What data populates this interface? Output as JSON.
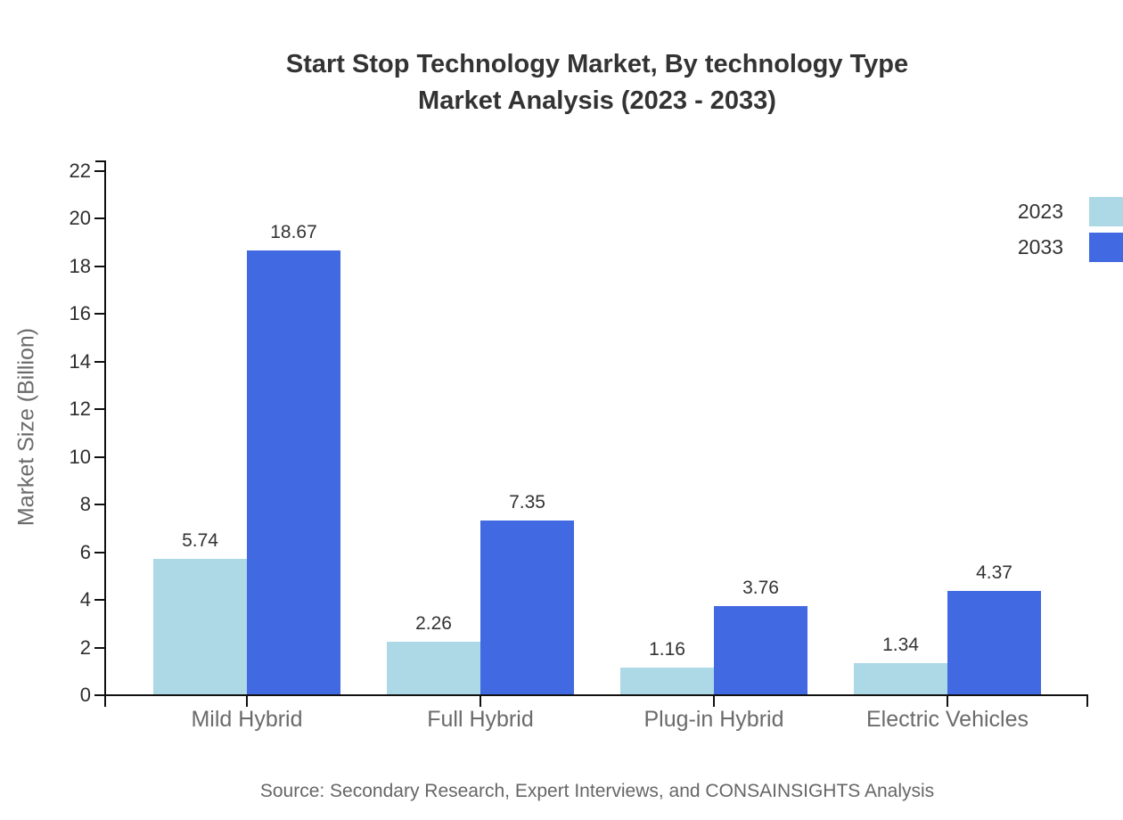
{
  "chart_data": {
    "type": "bar",
    "title": "Start Stop Technology Market, By technology Type",
    "subtitle": "Market Analysis (2023 - 2033)",
    "categories": [
      "Mild Hybrid",
      "Full Hybrid",
      "Plug-in Hybrid",
      "Electric Vehicles"
    ],
    "series": [
      {
        "name": "2023",
        "color": "#add8e6",
        "values": [
          5.74,
          2.26,
          1.16,
          1.34
        ]
      },
      {
        "name": "2033",
        "color": "#4169e1",
        "values": [
          18.67,
          7.35,
          3.76,
          4.37
        ]
      }
    ],
    "xlabel": "",
    "ylabel": "Market Size (Billion)",
    "ylim": [
      0,
      22
    ],
    "ytick_step": 2,
    "yticks": [
      0,
      2,
      4,
      6,
      8,
      10,
      12,
      14,
      16,
      18,
      20,
      22
    ],
    "grid": false,
    "value_labels": true,
    "legend_position": "top-right",
    "axis_color": "#111111",
    "title_color": "#333333",
    "muted_text_color": "#6b6b6b",
    "source": "Source: Secondary Research, Expert Interviews, and CONSAINSIGHTS Analysis"
  }
}
